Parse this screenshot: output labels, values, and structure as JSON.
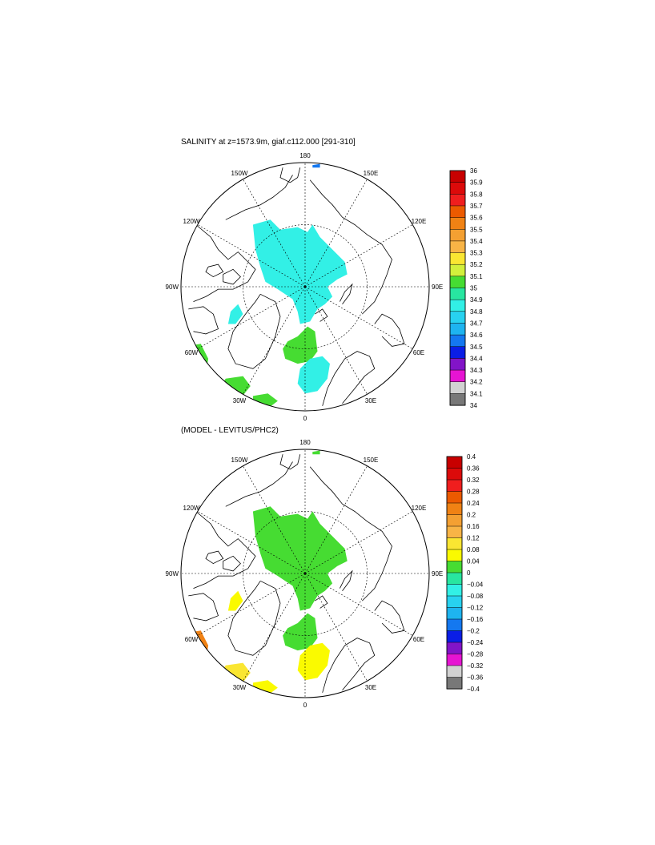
{
  "panels": [
    {
      "title": "SALINITY at z=1573.9m, giaf.c112.000 [291-310]",
      "lon_labels": {
        "lon_180": "180",
        "lon_150W": "150W",
        "lon_150E": "150E",
        "lon_120W": "120W",
        "lon_120E": "120E",
        "lon_90W": "90W",
        "lon_90E": "90E",
        "lon_60W": "60W",
        "lon_60E": "60E",
        "lon_30W": "30W",
        "lon_30E": "30E",
        "lon_0": "0"
      },
      "colorbar": {
        "labels": [
          "36",
          "35.9",
          "35.8",
          "35.7",
          "35.6",
          "35.5",
          "35.4",
          "35.3",
          "35.2",
          "35.1",
          "35",
          "34.9",
          "34.8",
          "34.7",
          "34.6",
          "34.5",
          "34.4",
          "34.3",
          "34.2",
          "34.1",
          "34"
        ],
        "colors": [
          "#c80000",
          "#dc0a0a",
          "#f01e1e",
          "#ec5a00",
          "#f08214",
          "#f4a032",
          "#f8b446",
          "#fae632",
          "#d2f03c",
          "#46dc32",
          "#28e6a0",
          "#32f0e6",
          "#28d2f0",
          "#1eb4f0",
          "#1478f0",
          "#0a1ee6",
          "#8214c8",
          "#e614d2",
          "#d2d2d2",
          "#787878"
        ]
      },
      "regions": [
        {
          "label": "central-arctic",
          "color": "#32f0e6"
        },
        {
          "label": "atlantic-inflow",
          "color": "#46dc32"
        },
        {
          "label": "norwegian-sea",
          "color": "#32f0e6"
        },
        {
          "label": "baffin-patch",
          "color": "#32f0e6"
        },
        {
          "label": "labrador-patch",
          "color": "#46dc32"
        },
        {
          "label": "irminger-patch",
          "color": "#46dc32"
        },
        {
          "label": "iceland-patch",
          "color": "#46dc32"
        },
        {
          "label": "bering-spot",
          "color": "#1478f0"
        }
      ]
    },
    {
      "title": "(MODEL - LEVITUS/PHC2)",
      "lon_labels": {
        "lon_180": "180",
        "lon_150W": "150W",
        "lon_150E": "150E",
        "lon_120W": "120W",
        "lon_120E": "120E",
        "lon_90W": "90W",
        "lon_90E": "90E",
        "lon_60W": "60W",
        "lon_60E": "60E",
        "lon_30W": "30W",
        "lon_30E": "30E",
        "lon_0": "0"
      },
      "colorbar": {
        "labels": [
          "0.4",
          "0.36",
          "0.32",
          "0.28",
          "0.24",
          "0.2",
          "0.16",
          "0.12",
          "0.08",
          "0.04",
          "0",
          "−0.04",
          "−0.08",
          "−0.12",
          "−0.16",
          "−0.2",
          "−0.24",
          "−0.28",
          "−0.32",
          "−0.36",
          "−0.4"
        ],
        "colors": [
          "#c80000",
          "#dc0a0a",
          "#f01e1e",
          "#ec5a00",
          "#f08214",
          "#f4a032",
          "#f8b446",
          "#fae632",
          "#fafa00",
          "#46dc32",
          "#28e6a0",
          "#32f0e6",
          "#28d2f0",
          "#1eb4f0",
          "#1478f0",
          "#0a1ee6",
          "#8214c8",
          "#e614d2",
          "#d2d2d2",
          "#787878"
        ]
      },
      "regions": [
        {
          "label": "central-arctic",
          "color": "#46dc32"
        },
        {
          "label": "atlantic-inflow",
          "color": "#46dc32"
        },
        {
          "label": "norwegian-sea",
          "color": "#fafa00"
        },
        {
          "label": "baffin-patch",
          "color": "#fafa00"
        },
        {
          "label": "labrador-patch",
          "color": "#f08214"
        },
        {
          "label": "irminger-patch",
          "color": "#fae632"
        },
        {
          "label": "iceland-patch",
          "color": "#fafa00"
        },
        {
          "label": "bering-spot",
          "color": "#46dc32"
        }
      ]
    }
  ]
}
